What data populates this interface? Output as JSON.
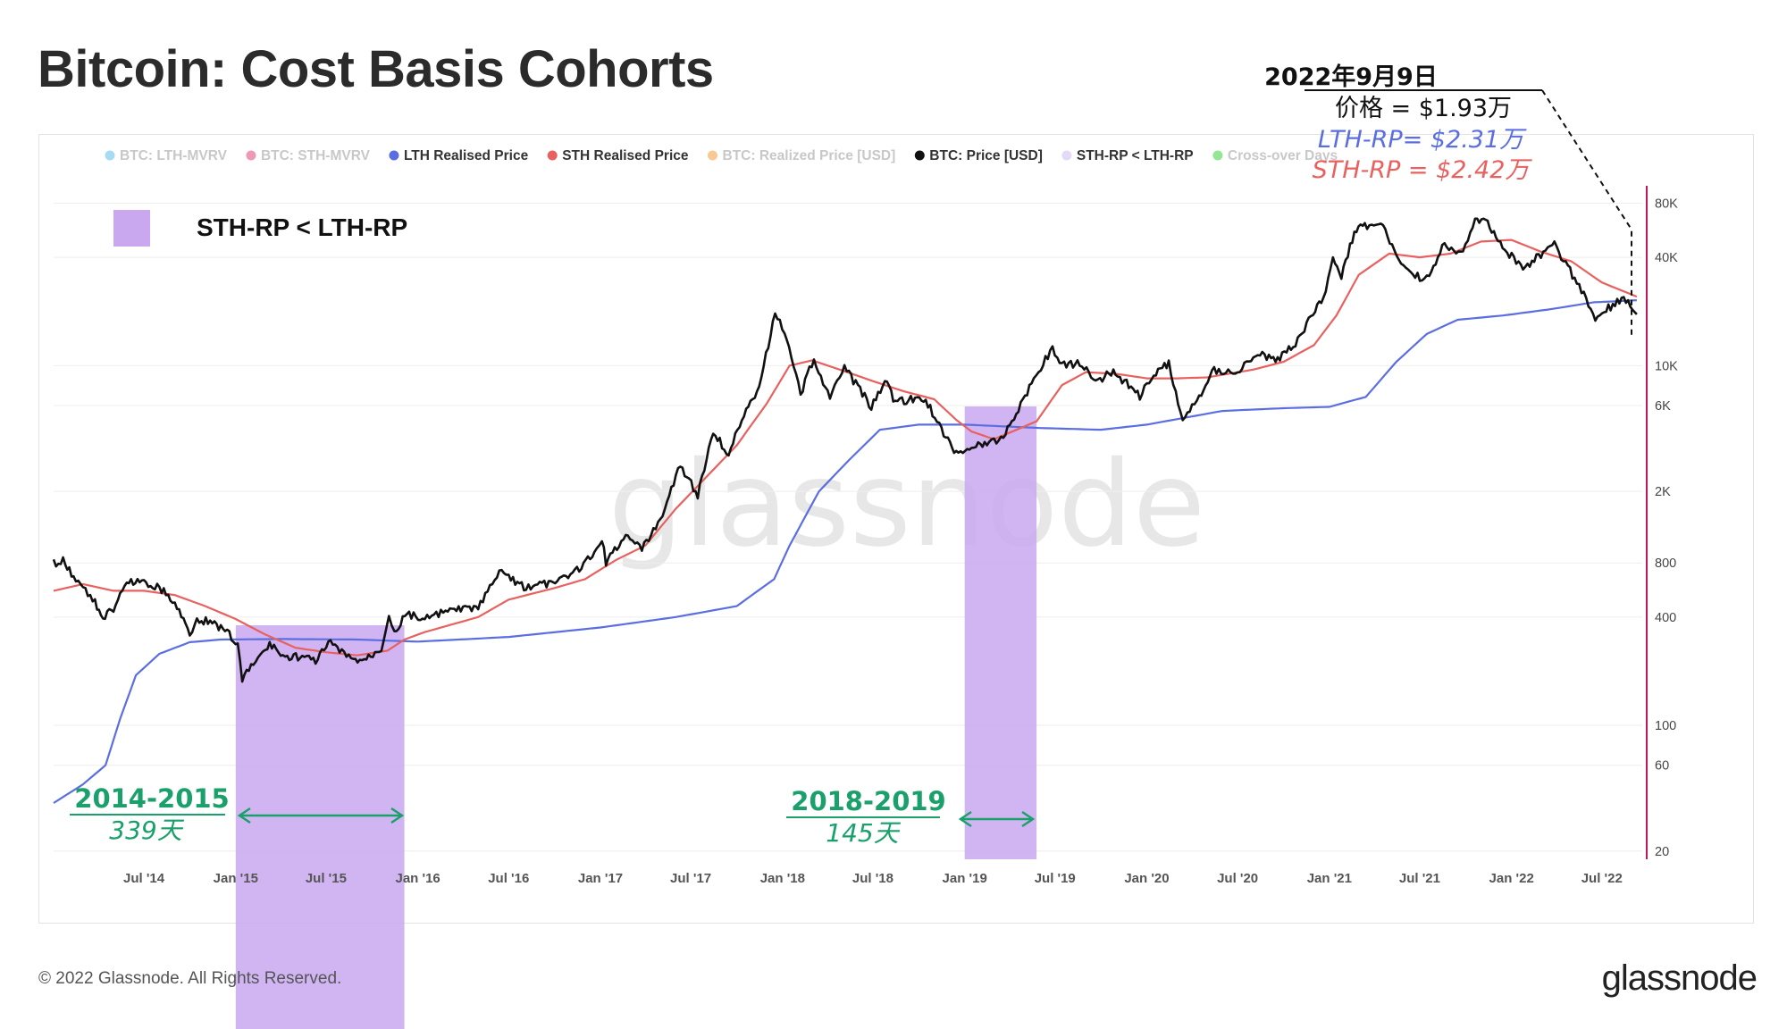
{
  "page": {
    "title": "Bitcoin: Cost Basis Cohorts",
    "copyright": "© 2022 Glassnode. All Rights Reserved.",
    "brand": "glassnode",
    "watermark": "glassnode"
  },
  "legend": {
    "items": [
      {
        "label": "BTC: LTH-MVRV",
        "color": "#5bc0eb",
        "active": false
      },
      {
        "label": "BTC: STH-MVRV",
        "color": "#e0457b",
        "active": false
      },
      {
        "label": "LTH Realised Price",
        "color": "#5b6ee1",
        "active": true
      },
      {
        "label": "STH Realised Price",
        "color": "#e8615f",
        "active": true
      },
      {
        "label": "BTC: Realized Price [USD]",
        "color": "#f39c3c",
        "active": false
      },
      {
        "label": "BTC: Price [USD]",
        "color": "#111111",
        "active": true
      },
      {
        "label": "STH-RP < LTH-RP",
        "color": "#e4d9f7",
        "active": true
      },
      {
        "label": "Cross-over Days",
        "color": "#3cd13c",
        "active": false
      }
    ],
    "box_label": "STH-RP < LTH-RP"
  },
  "annotations": {
    "date": "2022年9月9日",
    "price_line": "价格 = $1.93万",
    "lth_line": "LTH-RP= $2.31万",
    "sth_line": "STH-RP = $2.42万",
    "period1_years": "2014-2015",
    "period1_days": "339天",
    "period2_years": "2018-2019",
    "period2_days": "145天"
  },
  "colors": {
    "price": "#111111",
    "lth": "#5b6ee1",
    "sth": "#e8615f",
    "shade": "#c9a8f0",
    "green": "#1aa06b",
    "axis": "#c2185b"
  },
  "chart_data": {
    "type": "line",
    "y_scale": "log",
    "ylim": [
      18,
      100000
    ],
    "xlim": [
      "2014-01-01",
      "2022-09-20"
    ],
    "x_ticks": [
      {
        "date": "2014-07-01",
        "label": "Jul '14"
      },
      {
        "date": "2015-01-01",
        "label": "Jan '15"
      },
      {
        "date": "2015-07-01",
        "label": "Jul '15"
      },
      {
        "date": "2016-01-01",
        "label": "Jan '16"
      },
      {
        "date": "2016-07-01",
        "label": "Jul '16"
      },
      {
        "date": "2017-01-01",
        "label": "Jan '17"
      },
      {
        "date": "2017-07-01",
        "label": "Jul '17"
      },
      {
        "date": "2018-01-01",
        "label": "Jan '18"
      },
      {
        "date": "2018-07-01",
        "label": "Jul '18"
      },
      {
        "date": "2019-01-01",
        "label": "Jan '19"
      },
      {
        "date": "2019-07-01",
        "label": "Jul '19"
      },
      {
        "date": "2020-01-01",
        "label": "Jan '20"
      },
      {
        "date": "2020-07-01",
        "label": "Jul '20"
      },
      {
        "date": "2021-01-01",
        "label": "Jan '21"
      },
      {
        "date": "2021-07-01",
        "label": "Jul '21"
      },
      {
        "date": "2022-01-01",
        "label": "Jan '22"
      },
      {
        "date": "2022-07-01",
        "label": "Jul '22"
      }
    ],
    "y_ticks": [
      {
        "value": 20,
        "label": "20"
      },
      {
        "value": 60,
        "label": "60"
      },
      {
        "value": 100,
        "label": "100"
      },
      {
        "value": 400,
        "label": "400"
      },
      {
        "value": 800,
        "label": "800"
      },
      {
        "value": 2000,
        "label": "2K"
      },
      {
        "value": 6000,
        "label": "6K"
      },
      {
        "value": 10000,
        "label": "10K"
      },
      {
        "value": 40000,
        "label": "40K"
      },
      {
        "value": 80000,
        "label": "80K"
      }
    ],
    "shaded_periods": [
      {
        "start": "2015-01-01",
        "end": "2015-12-05"
      },
      {
        "start": "2019-01-01",
        "end": "2019-05-25"
      }
    ],
    "series": [
      {
        "name": "BTC: Price [USD]",
        "key": "price",
        "points": [
          [
            "2014-01-01",
            800
          ],
          [
            "2014-01-20",
            820
          ],
          [
            "2014-02-10",
            680
          ],
          [
            "2014-03-01",
            580
          ],
          [
            "2014-03-25",
            480
          ],
          [
            "2014-04-10",
            400
          ],
          [
            "2014-05-01",
            440
          ],
          [
            "2014-06-01",
            640
          ],
          [
            "2014-07-01",
            620
          ],
          [
            "2014-08-01",
            590
          ],
          [
            "2014-09-01",
            480
          ],
          [
            "2014-10-01",
            330
          ],
          [
            "2014-10-20",
            390
          ],
          [
            "2014-11-15",
            370
          ],
          [
            "2014-12-15",
            330
          ],
          [
            "2015-01-05",
            280
          ],
          [
            "2015-01-14",
            180
          ],
          [
            "2015-02-10",
            230
          ],
          [
            "2015-03-10",
            280
          ],
          [
            "2015-04-10",
            240
          ],
          [
            "2015-05-10",
            240
          ],
          [
            "2015-06-10",
            230
          ],
          [
            "2015-07-10",
            290
          ],
          [
            "2015-08-20",
            230
          ],
          [
            "2015-09-20",
            235
          ],
          [
            "2015-10-20",
            270
          ],
          [
            "2015-11-04",
            420
          ],
          [
            "2015-11-15",
            330
          ],
          [
            "2015-12-10",
            420
          ],
          [
            "2016-01-15",
            390
          ],
          [
            "2016-03-01",
            430
          ],
          [
            "2016-05-01",
            450
          ],
          [
            "2016-06-17",
            730
          ],
          [
            "2016-07-01",
            670
          ],
          [
            "2016-08-05",
            580
          ],
          [
            "2016-09-15",
            610
          ],
          [
            "2016-10-15",
            640
          ],
          [
            "2016-11-15",
            730
          ],
          [
            "2016-12-20",
            900
          ],
          [
            "2017-01-04",
            1100
          ],
          [
            "2017-01-12",
            800
          ],
          [
            "2017-02-25",
            1180
          ],
          [
            "2017-03-25",
            950
          ],
          [
            "2017-05-01",
            1400
          ],
          [
            "2017-06-10",
            2800
          ],
          [
            "2017-07-15",
            1900
          ],
          [
            "2017-08-15",
            4300
          ],
          [
            "2017-09-15",
            3200
          ],
          [
            "2017-10-20",
            5800
          ],
          [
            "2017-11-15",
            7500
          ],
          [
            "2017-12-17",
            19500
          ],
          [
            "2018-01-05",
            15500
          ],
          [
            "2018-02-06",
            6900
          ],
          [
            "2018-03-05",
            11000
          ],
          [
            "2018-04-06",
            6600
          ],
          [
            "2018-05-05",
            9800
          ],
          [
            "2018-06-28",
            5900
          ],
          [
            "2018-07-25",
            8200
          ],
          [
            "2018-08-15",
            6300
          ],
          [
            "2018-09-15",
            6500
          ],
          [
            "2018-10-15",
            6400
          ],
          [
            "2018-11-20",
            4200
          ],
          [
            "2018-12-15",
            3200
          ],
          [
            "2019-01-15",
            3600
          ],
          [
            "2019-02-10",
            3600
          ],
          [
            "2019-03-15",
            3900
          ],
          [
            "2019-04-10",
            5200
          ],
          [
            "2019-05-15",
            8000
          ],
          [
            "2019-06-26",
            12500
          ],
          [
            "2019-07-15",
            10000
          ],
          [
            "2019-08-15",
            10300
          ],
          [
            "2019-09-25",
            8300
          ],
          [
            "2019-10-26",
            9300
          ],
          [
            "2019-12-18",
            6800
          ],
          [
            "2020-01-15",
            8800
          ],
          [
            "2020-02-14",
            10300
          ],
          [
            "2020-03-13",
            4900
          ],
          [
            "2020-04-15",
            6800
          ],
          [
            "2020-05-15",
            9500
          ],
          [
            "2020-07-01",
            9200
          ],
          [
            "2020-08-15",
            11800
          ],
          [
            "2020-09-15",
            10700
          ],
          [
            "2020-10-25",
            13000
          ],
          [
            "2020-11-25",
            18500
          ],
          [
            "2020-12-20",
            23500
          ],
          [
            "2021-01-08",
            40500
          ],
          [
            "2021-01-25",
            31000
          ],
          [
            "2021-02-20",
            55000
          ],
          [
            "2021-03-13",
            60000
          ],
          [
            "2021-04-14",
            63500
          ],
          [
            "2021-05-20",
            37000
          ],
          [
            "2021-06-22",
            31500
          ],
          [
            "2021-07-20",
            30000
          ],
          [
            "2021-08-15",
            47000
          ],
          [
            "2021-09-21",
            41000
          ],
          [
            "2021-10-20",
            64000
          ],
          [
            "2021-11-10",
            67500
          ],
          [
            "2021-12-05",
            48000
          ],
          [
            "2022-01-24",
            35000
          ],
          [
            "2022-03-28",
            47000
          ],
          [
            "2022-05-12",
            29000
          ],
          [
            "2022-06-18",
            18500
          ],
          [
            "2022-07-01",
            19500
          ],
          [
            "2022-08-14",
            24300
          ],
          [
            "2022-09-09",
            19300
          ]
        ]
      },
      {
        "name": "STH Realised Price",
        "key": "sth",
        "points": [
          [
            "2014-01-01",
            560
          ],
          [
            "2014-03-01",
            610
          ],
          [
            "2014-05-01",
            560
          ],
          [
            "2014-07-01",
            560
          ],
          [
            "2014-09-01",
            530
          ],
          [
            "2014-11-01",
            460
          ],
          [
            "2015-01-01",
            390
          ],
          [
            "2015-03-01",
            320
          ],
          [
            "2015-05-01",
            270
          ],
          [
            "2015-07-01",
            255
          ],
          [
            "2015-09-01",
            245
          ],
          [
            "2015-11-01",
            260
          ],
          [
            "2015-12-05",
            300
          ],
          [
            "2016-01-15",
            330
          ],
          [
            "2016-05-01",
            400
          ],
          [
            "2016-07-01",
            500
          ],
          [
            "2016-10-01",
            580
          ],
          [
            "2016-12-01",
            650
          ],
          [
            "2017-02-01",
            830
          ],
          [
            "2017-04-01",
            1000
          ],
          [
            "2017-06-01",
            1600
          ],
          [
            "2017-08-01",
            2400
          ],
          [
            "2017-10-01",
            3600
          ],
          [
            "2017-12-01",
            6200
          ],
          [
            "2018-01-15",
            10000
          ],
          [
            "2018-03-01",
            10700
          ],
          [
            "2018-05-01",
            9400
          ],
          [
            "2018-07-01",
            8200
          ],
          [
            "2018-09-01",
            7200
          ],
          [
            "2018-11-01",
            6500
          ],
          [
            "2018-12-15",
            5000
          ],
          [
            "2019-01-15",
            4300
          ],
          [
            "2019-03-01",
            3900
          ],
          [
            "2019-05-25",
            4900
          ],
          [
            "2019-07-15",
            7800
          ],
          [
            "2019-09-01",
            9200
          ],
          [
            "2019-11-01",
            9000
          ],
          [
            "2020-01-01",
            8500
          ],
          [
            "2020-03-01",
            8500
          ],
          [
            "2020-05-01",
            8600
          ],
          [
            "2020-08-01",
            9500
          ],
          [
            "2020-10-01",
            10500
          ],
          [
            "2020-12-01",
            13000
          ],
          [
            "2021-01-15",
            19000
          ],
          [
            "2021-03-01",
            32000
          ],
          [
            "2021-05-01",
            42000
          ],
          [
            "2021-07-01",
            40000
          ],
          [
            "2021-09-01",
            42000
          ],
          [
            "2021-11-01",
            49000
          ],
          [
            "2022-01-01",
            50000
          ],
          [
            "2022-03-01",
            43000
          ],
          [
            "2022-05-01",
            38000
          ],
          [
            "2022-07-01",
            29000
          ],
          [
            "2022-09-09",
            24200
          ]
        ]
      },
      {
        "name": "LTH Realised Price",
        "key": "lth",
        "points": [
          [
            "2014-01-01",
            37
          ],
          [
            "2014-03-01",
            47
          ],
          [
            "2014-04-15",
            60
          ],
          [
            "2014-05-15",
            110
          ],
          [
            "2014-06-15",
            190
          ],
          [
            "2014-08-01",
            250
          ],
          [
            "2014-10-01",
            290
          ],
          [
            "2014-12-01",
            300
          ],
          [
            "2015-04-01",
            302
          ],
          [
            "2015-09-01",
            300
          ],
          [
            "2016-01-01",
            292
          ],
          [
            "2016-07-01",
            310
          ],
          [
            "2017-01-01",
            350
          ],
          [
            "2017-06-01",
            400
          ],
          [
            "2017-10-01",
            460
          ],
          [
            "2017-12-15",
            650
          ],
          [
            "2018-01-15",
            1000
          ],
          [
            "2018-03-15",
            2000
          ],
          [
            "2018-05-15",
            3000
          ],
          [
            "2018-07-15",
            4400
          ],
          [
            "2018-10-01",
            4700
          ],
          [
            "2019-01-01",
            4700
          ],
          [
            "2019-06-01",
            4500
          ],
          [
            "2019-10-01",
            4400
          ],
          [
            "2020-01-01",
            4700
          ],
          [
            "2020-06-01",
            5600
          ],
          [
            "2020-10-01",
            5800
          ],
          [
            "2021-01-01",
            5900
          ],
          [
            "2021-03-15",
            6700
          ],
          [
            "2021-05-15",
            10500
          ],
          [
            "2021-07-15",
            15000
          ],
          [
            "2021-09-15",
            18000
          ],
          [
            "2021-12-15",
            19000
          ],
          [
            "2022-03-15",
            20500
          ],
          [
            "2022-06-15",
            22500
          ],
          [
            "2022-09-09",
            23100
          ]
        ]
      }
    ]
  }
}
